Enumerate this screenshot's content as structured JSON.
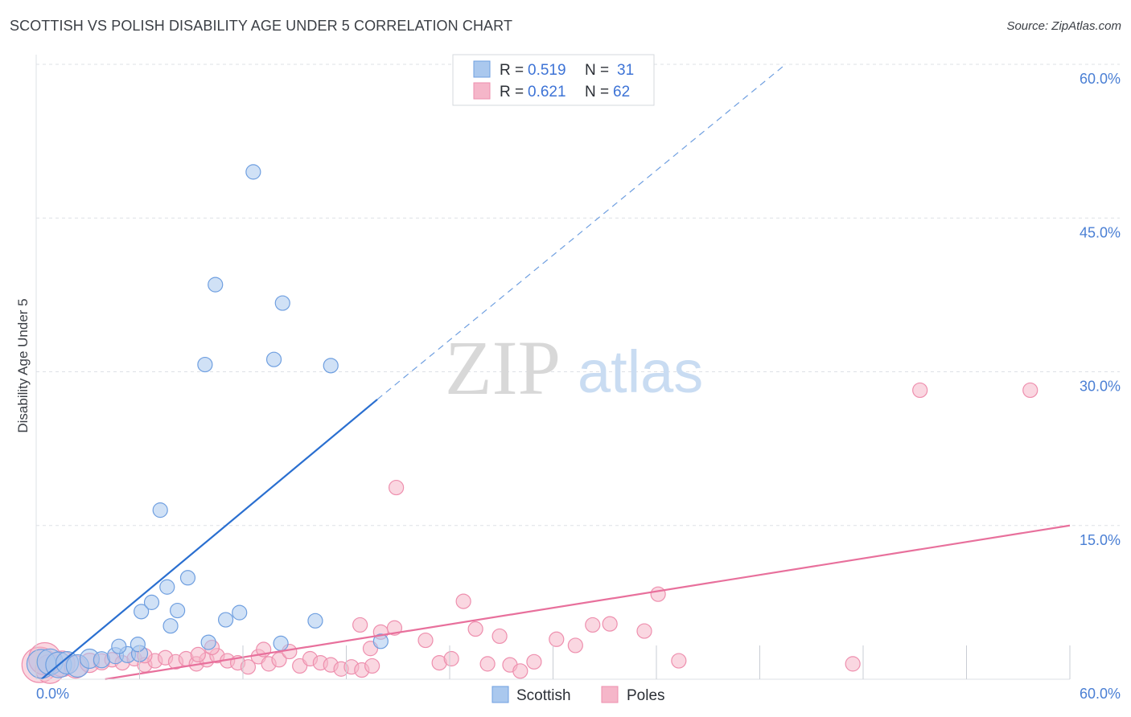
{
  "header": {
    "title": "SCOTTISH VS POLISH DISABILITY AGE UNDER 5 CORRELATION CHART",
    "source": "Source: ZipAtlas.com"
  },
  "watermark": {
    "zip": "ZIP",
    "atlas": "atlas"
  },
  "legend": {
    "scottish": {
      "r_label": "R = ",
      "r_value": "0.519",
      "n_label": "N = ",
      "n_value": "31"
    },
    "poles": {
      "r_label": "R = ",
      "r_value": "0.621",
      "n_label": "N = ",
      "n_value": "62"
    }
  },
  "bottom_legend": {
    "scottish": "Scottish",
    "poles": "Poles"
  },
  "colors": {
    "scottish_fill": "#aac8ee",
    "scottish_stroke": "#6f9fe0",
    "scottish_line": "#2a6fd0",
    "poles_fill": "#f5b6c9",
    "poles_stroke": "#ee8fae",
    "poles_line": "#e8709c",
    "grid": "#dde0e6",
    "axis_text": "#4a7fd4"
  },
  "chart_data": {
    "type": "scatter",
    "title": "SCOTTISH VS POLISH DISABILITY AGE UNDER 5 CORRELATION CHART",
    "xlabel": "",
    "ylabel": "Disability Age Under 5",
    "xlim": [
      0,
      60
    ],
    "ylim": [
      0,
      60
    ],
    "x_tick_labels": [
      "0.0%",
      "60.0%"
    ],
    "y_ticks": [
      15,
      30,
      45,
      60
    ],
    "y_tick_labels": [
      "15.0%",
      "30.0%",
      "45.0%",
      "60.0%"
    ],
    "grid": true,
    "series": [
      {
        "name": "Scottish",
        "R": 0.519,
        "N": 31,
        "trend": {
          "x0": 0.3,
          "y0": 0.0,
          "x1": 19.8,
          "y1": 27.3,
          "dashed_to_x": 43.5,
          "dashed_to_y": 60.0
        },
        "points": [
          [
            0.3,
            1.5,
            18
          ],
          [
            0.8,
            1.7,
            16
          ],
          [
            1.3,
            1.4,
            16
          ],
          [
            1.8,
            1.6,
            14
          ],
          [
            2.4,
            1.3,
            14
          ],
          [
            3.1,
            2.0,
            12
          ],
          [
            3.8,
            1.9,
            10
          ],
          [
            4.6,
            2.3,
            10
          ],
          [
            5.3,
            2.4,
            10
          ],
          [
            6.0,
            2.5,
            10
          ],
          [
            4.8,
            3.2,
            9
          ],
          [
            5.9,
            3.4,
            9
          ],
          [
            10.0,
            3.6,
            9
          ],
          [
            14.2,
            3.5,
            9
          ],
          [
            20.0,
            3.7,
            9
          ],
          [
            6.1,
            6.6,
            9
          ],
          [
            6.7,
            7.5,
            9
          ],
          [
            7.6,
            9.0,
            9
          ],
          [
            8.2,
            6.7,
            9
          ],
          [
            8.8,
            9.9,
            9
          ],
          [
            7.8,
            5.2,
            9
          ],
          [
            11.0,
            5.8,
            9
          ],
          [
            11.8,
            6.5,
            9
          ],
          [
            16.2,
            5.7,
            9
          ],
          [
            7.2,
            16.5,
            9
          ],
          [
            9.8,
            30.7,
            9
          ],
          [
            13.8,
            31.2,
            9
          ],
          [
            17.1,
            30.6,
            9
          ],
          [
            10.4,
            38.5,
            9
          ],
          [
            14.3,
            36.7,
            9
          ],
          [
            12.6,
            49.5,
            9
          ]
        ]
      },
      {
        "name": "Poles",
        "R": 0.621,
        "N": 62,
        "trend": {
          "x0": 4.0,
          "y0": 0.0,
          "x1": 60.0,
          "y1": 15.0
        },
        "points": [
          [
            0.2,
            1.4,
            22
          ],
          [
            0.8,
            1.0,
            18
          ],
          [
            1.5,
            1.5,
            16
          ],
          [
            2.3,
            1.2,
            14
          ],
          [
            3.1,
            1.6,
            12
          ],
          [
            3.8,
            1.7,
            10
          ],
          [
            4.4,
            1.9,
            9
          ],
          [
            5.0,
            1.6,
            9
          ],
          [
            5.7,
            2.0,
            9
          ],
          [
            6.3,
            1.4,
            9
          ],
          [
            6.9,
            1.8,
            9
          ],
          [
            7.5,
            2.1,
            9
          ],
          [
            8.1,
            1.7,
            9
          ],
          [
            8.7,
            2.0,
            9
          ],
          [
            9.3,
            1.5,
            9
          ],
          [
            9.9,
            1.9,
            9
          ],
          [
            10.5,
            2.3,
            9
          ],
          [
            11.1,
            1.8,
            9
          ],
          [
            11.7,
            1.6,
            9
          ],
          [
            12.3,
            1.2,
            9
          ],
          [
            12.9,
            2.2,
            9
          ],
          [
            13.5,
            1.5,
            9
          ],
          [
            14.1,
            1.9,
            9
          ],
          [
            14.7,
            2.7,
            9
          ],
          [
            15.3,
            1.3,
            9
          ],
          [
            15.9,
            2.0,
            9
          ],
          [
            16.5,
            1.6,
            9
          ],
          [
            17.1,
            1.4,
            9
          ],
          [
            17.7,
            1.0,
            9
          ],
          [
            18.3,
            1.2,
            9
          ],
          [
            18.9,
            0.9,
            9
          ],
          [
            19.5,
            1.3,
            9
          ],
          [
            6.3,
            2.3,
            9
          ],
          [
            9.4,
            2.4,
            9
          ],
          [
            10.2,
            3.1,
            9
          ],
          [
            13.2,
            2.9,
            9
          ],
          [
            18.8,
            5.3,
            9
          ],
          [
            19.4,
            3.0,
            9
          ],
          [
            20.0,
            4.6,
            9
          ],
          [
            20.8,
            5.0,
            9
          ],
          [
            22.6,
            3.8,
            9
          ],
          [
            23.4,
            1.6,
            9
          ],
          [
            24.1,
            2.0,
            9
          ],
          [
            24.8,
            7.6,
            9
          ],
          [
            25.5,
            4.9,
            9
          ],
          [
            26.2,
            1.5,
            9
          ],
          [
            26.9,
            4.2,
            9
          ],
          [
            27.5,
            1.4,
            9
          ],
          [
            28.1,
            0.8,
            9
          ],
          [
            28.9,
            1.7,
            9
          ],
          [
            30.2,
            3.9,
            9
          ],
          [
            31.3,
            3.3,
            9
          ],
          [
            32.3,
            5.3,
            9
          ],
          [
            33.3,
            5.4,
            9
          ],
          [
            35.3,
            4.7,
            9
          ],
          [
            36.1,
            8.3,
            9
          ],
          [
            37.3,
            1.8,
            9
          ],
          [
            47.4,
            1.5,
            9
          ],
          [
            51.3,
            28.2,
            9
          ],
          [
            57.7,
            28.2,
            9
          ],
          [
            20.9,
            18.7,
            9
          ],
          [
            0.5,
            2.0,
            20
          ]
        ]
      }
    ]
  }
}
